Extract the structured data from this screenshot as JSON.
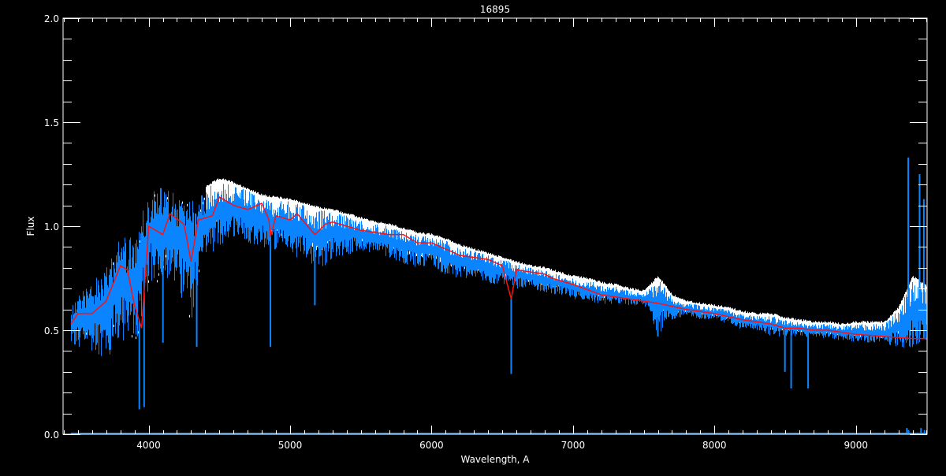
{
  "chart_data": {
    "type": "line",
    "title": "16895",
    "xlabel": "Wavelength, A",
    "ylabel": "Flux",
    "xlim": [
      3395,
      9503
    ],
    "ylim": [
      0.0,
      2.0
    ],
    "x_ticks": [
      4000,
      5000,
      6000,
      7000,
      8000,
      9000
    ],
    "x_tick_labels": [
      "4000",
      "5000",
      "6000",
      "7000",
      "8000",
      "9000"
    ],
    "y_ticks": [
      0.0,
      0.5,
      1.0,
      1.5,
      2.0
    ],
    "y_tick_labels": [
      "0.0",
      "0.5",
      "1.0",
      "1.5",
      "2.0"
    ],
    "x_minor_step": 100,
    "y_minor_step": 0.1,
    "grid": false,
    "background": "#000000",
    "colors": {
      "observed": "#0a84ff",
      "secondary": "#ffffff",
      "smoothed": "#ff1010",
      "axes": "#ffffff"
    },
    "series": [
      {
        "key": "smoothed",
        "x": [
          3450,
          3500,
          3600,
          3700,
          3800,
          3850,
          3900,
          3950,
          3990,
          4000,
          4100,
          4150,
          4250,
          4300,
          4350,
          4450,
          4500,
          4600,
          4700,
          4800,
          4850,
          4861,
          4900,
          5000,
          5050,
          5150,
          5175,
          5250,
          5300,
          5400,
          5500,
          5600,
          5700,
          5800,
          5900,
          6000,
          6100,
          6200,
          6300,
          6400,
          6500,
          6563,
          6600,
          6700,
          6800,
          6850,
          7000,
          7200,
          7400,
          7600,
          7800,
          8000,
          8200,
          8400,
          8500,
          8600,
          8700,
          8800,
          9000,
          9200,
          9400,
          9500
        ],
        "y": [
          0.53,
          0.58,
          0.58,
          0.64,
          0.81,
          0.79,
          0.62,
          0.51,
          0.89,
          1.0,
          0.96,
          1.06,
          1.01,
          0.83,
          1.03,
          1.05,
          1.14,
          1.1,
          1.08,
          1.11,
          1.03,
          0.95,
          1.05,
          1.03,
          1.06,
          0.98,
          0.96,
          1.01,
          1.02,
          1.0,
          0.98,
          0.97,
          0.96,
          0.96,
          0.92,
          0.92,
          0.89,
          0.86,
          0.85,
          0.84,
          0.81,
          0.65,
          0.79,
          0.78,
          0.77,
          0.75,
          0.72,
          0.67,
          0.65,
          0.63,
          0.6,
          0.58,
          0.55,
          0.53,
          0.51,
          0.51,
          0.5,
          0.5,
          0.48,
          0.47,
          0.46,
          0.46
        ]
      },
      {
        "key": "observed_envelope",
        "x": [
          3450,
          3500,
          3600,
          3700,
          3800,
          3900,
          4000,
          4100,
          4200,
          4300,
          4400,
          4500,
          4600,
          4700,
          4800,
          4900,
          5000,
          5100,
          5200,
          5300,
          5400,
          5500,
          5600,
          5700,
          5800,
          5900,
          6000,
          6100,
          6200,
          6300,
          6400,
          6500,
          6600,
          6700,
          6800,
          6900,
          7000,
          7100,
          7200,
          7300,
          7400,
          7500,
          7600,
          7700,
          7800,
          7900,
          8000,
          8100,
          8200,
          8300,
          8400,
          8500,
          8600,
          8700,
          8800,
          8900,
          9000,
          9100,
          9200,
          9300,
          9400,
          9500
        ],
        "upper": [
          0.62,
          0.68,
          0.74,
          0.82,
          0.95,
          0.95,
          1.18,
          1.2,
          1.15,
          1.12,
          1.18,
          1.22,
          1.2,
          1.17,
          1.14,
          1.13,
          1.12,
          1.1,
          1.08,
          1.07,
          1.05,
          1.03,
          1.01,
          1.0,
          0.98,
          0.96,
          0.95,
          0.93,
          0.9,
          0.88,
          0.86,
          0.84,
          0.82,
          0.8,
          0.79,
          0.77,
          0.75,
          0.74,
          0.72,
          0.71,
          0.69,
          0.68,
          0.75,
          0.66,
          0.63,
          0.62,
          0.61,
          0.6,
          0.58,
          0.57,
          0.57,
          0.55,
          0.54,
          0.53,
          0.53,
          0.52,
          0.53,
          0.53,
          0.53,
          0.6,
          0.75,
          0.7
        ],
        "lower": [
          0.42,
          0.4,
          0.4,
          0.36,
          0.45,
          0.4,
          0.7,
          0.75,
          0.7,
          0.55,
          0.85,
          0.9,
          0.95,
          0.92,
          0.9,
          0.88,
          0.85,
          0.85,
          0.78,
          0.85,
          0.86,
          0.88,
          0.87,
          0.85,
          0.82,
          0.8,
          0.82,
          0.75,
          0.75,
          0.75,
          0.72,
          0.72,
          0.7,
          0.7,
          0.68,
          0.67,
          0.65,
          0.64,
          0.62,
          0.63,
          0.62,
          0.62,
          0.48,
          0.55,
          0.57,
          0.55,
          0.55,
          0.53,
          0.5,
          0.5,
          0.47,
          0.47,
          0.47,
          0.46,
          0.46,
          0.45,
          0.44,
          0.44,
          0.43,
          0.42,
          0.4,
          0.45
        ]
      }
    ],
    "absorption_lines": [
      {
        "x": 3934,
        "y": 0.12
      },
      {
        "x": 3968,
        "y": 0.13
      },
      {
        "x": 4101,
        "y": 0.44
      },
      {
        "x": 4340,
        "y": 0.42
      },
      {
        "x": 4861,
        "y": 0.42
      },
      {
        "x": 5175,
        "y": 0.62
      },
      {
        "x": 6563,
        "y": 0.29
      },
      {
        "x": 7600,
        "y": 0.47
      },
      {
        "x": 8498,
        "y": 0.3
      },
      {
        "x": 8542,
        "y": 0.22
      },
      {
        "x": 8662,
        "y": 0.22
      }
    ],
    "emission_spikes": [
      {
        "x": 9370,
        "y": 1.33
      },
      {
        "x": 9450,
        "y": 1.25
      },
      {
        "x": 9480,
        "y": 1.13
      }
    ]
  }
}
